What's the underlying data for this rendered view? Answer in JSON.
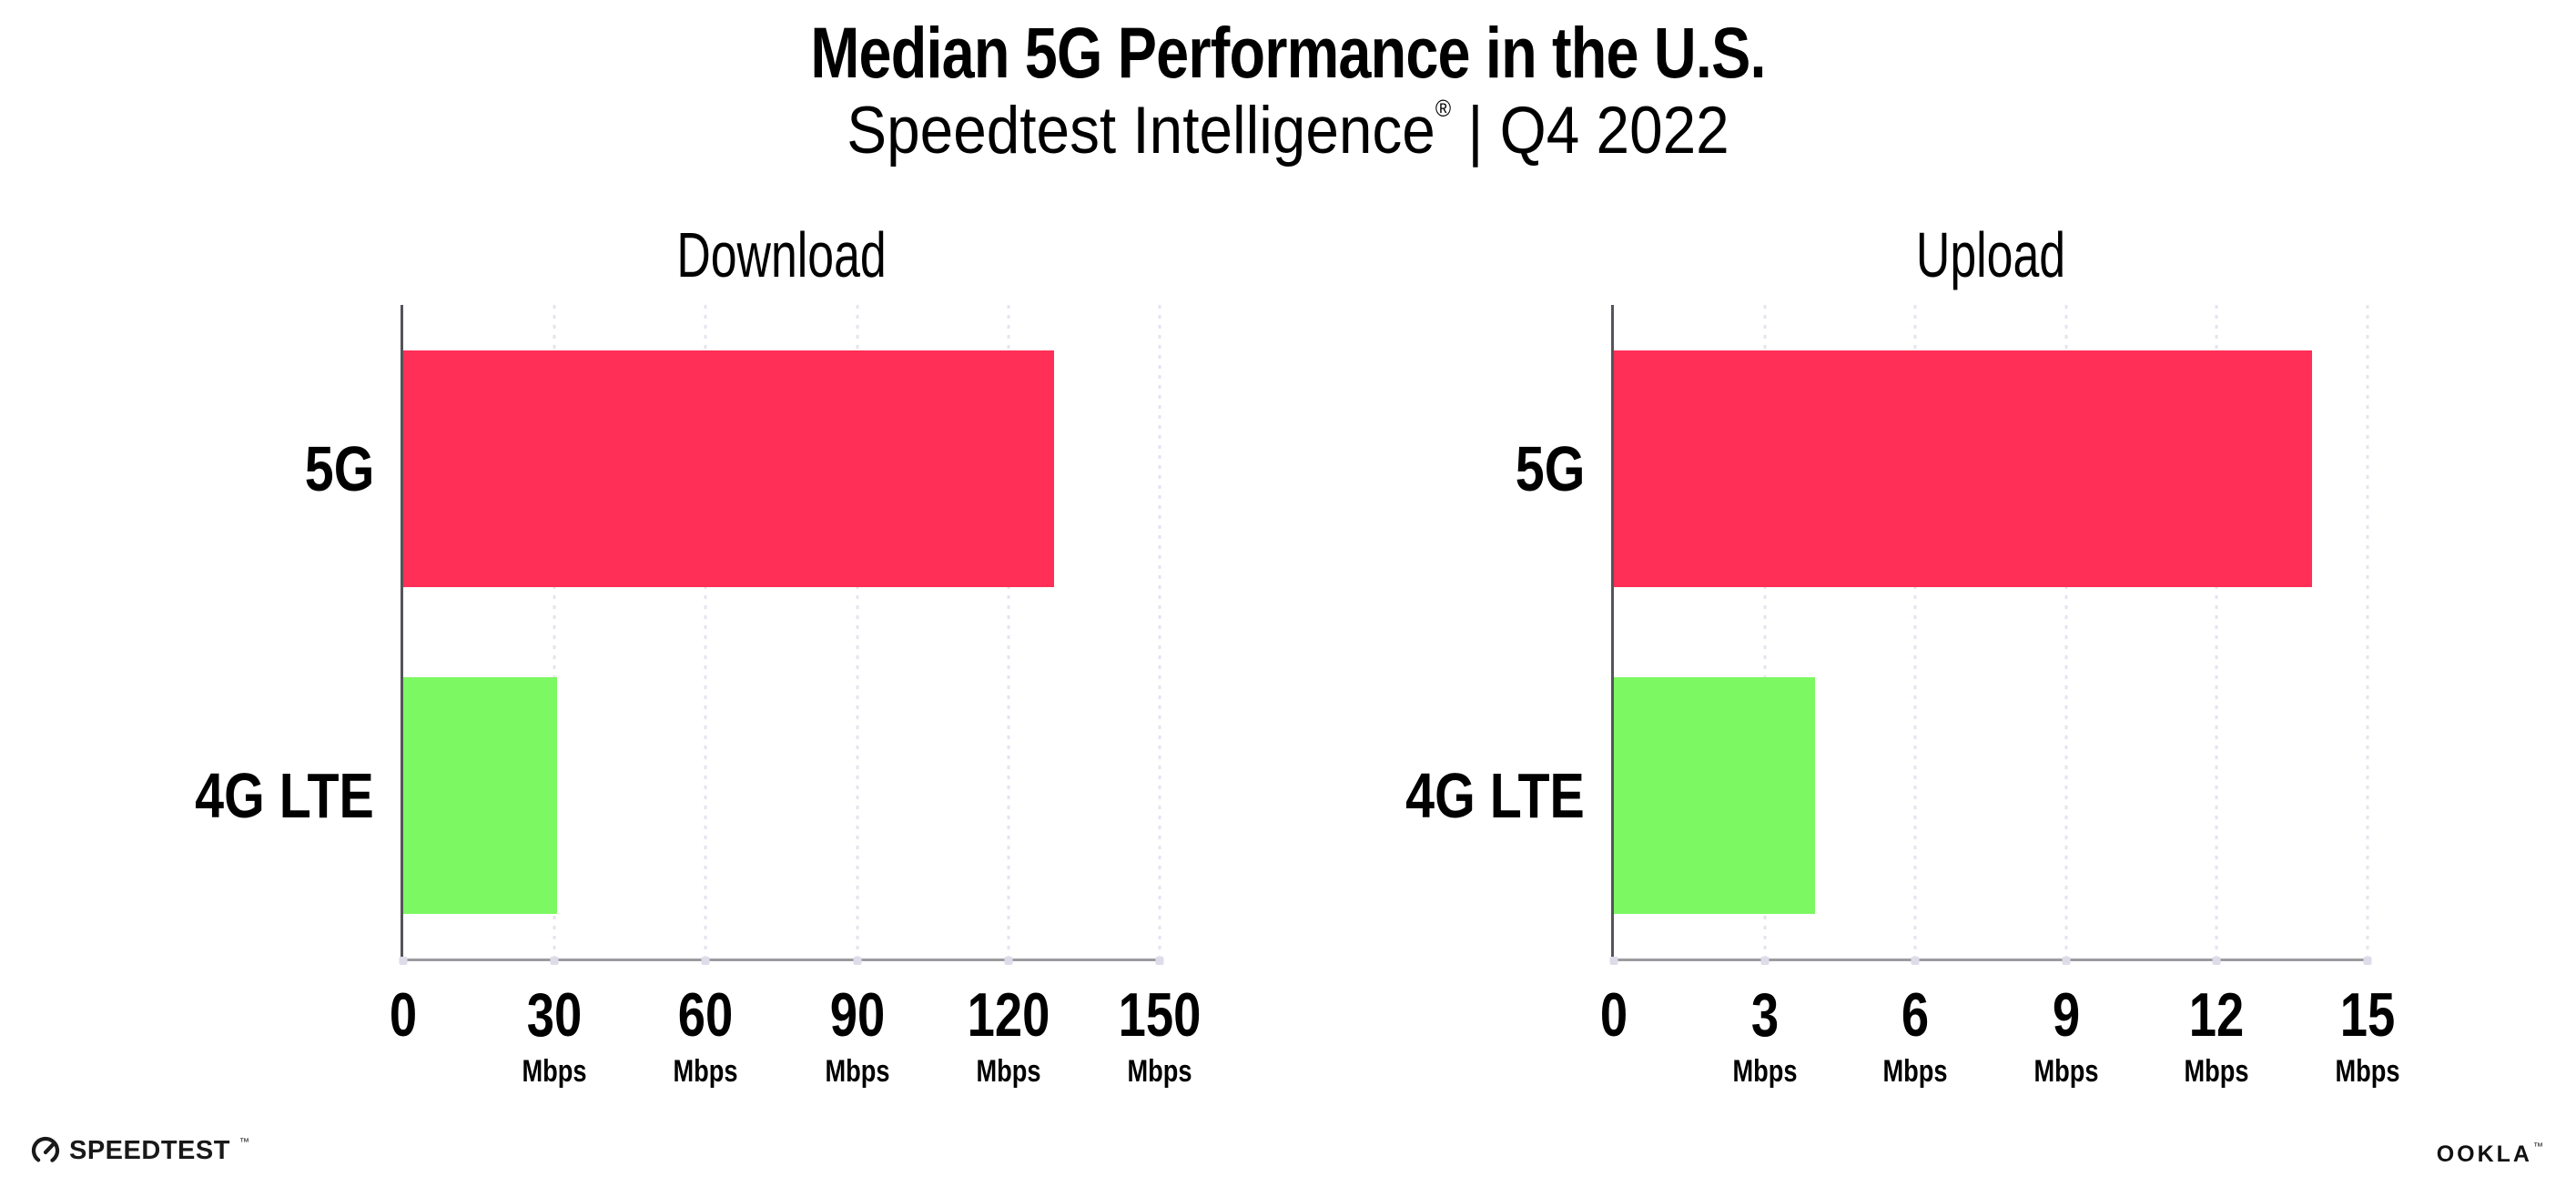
{
  "header": {
    "title": "Median 5G Performance in the U.S.",
    "subtitle_product": "Speedtest Intelligence",
    "subtitle_mark": "®",
    "subtitle_rest": " | Q4 2022"
  },
  "chart_data": [
    {
      "type": "bar",
      "orientation": "horizontal",
      "title": "Download",
      "categories": [
        "5G",
        "4G LTE"
      ],
      "values": [
        129,
        30.5
      ],
      "unit": "Mbps",
      "xlim": [
        0,
        150
      ],
      "xticks": [
        0,
        30,
        60,
        90,
        120,
        150
      ],
      "xtick_unit_label": "Mbps",
      "bar_colors": [
        "#FF2F57",
        "#7CF862"
      ],
      "grid": "dotted-vertical",
      "legend": "none"
    },
    {
      "type": "bar",
      "orientation": "horizontal",
      "title": "Upload",
      "categories": [
        "5G",
        "4G LTE"
      ],
      "values": [
        13.9,
        4
      ],
      "unit": "Mbps",
      "xlim": [
        0,
        15
      ],
      "xticks": [
        0,
        3,
        6,
        9,
        12,
        15
      ],
      "xtick_unit_label": "Mbps",
      "bar_colors": [
        "#FF2F57",
        "#7CF862"
      ],
      "grid": "dotted-vertical",
      "legend": "none"
    }
  ],
  "footer": {
    "speedtest_label": "SPEEDTEST",
    "speedtest_mark": "™",
    "ookla_label": "OOKLA",
    "ookla_mark": "™"
  },
  "style": {
    "bar_5g_color": "#FF2F57",
    "bar_4g_color": "#7CF862",
    "gridline_color": "#E4E4F0",
    "tick_dot_color": "#DCDDE9",
    "y_axis_color": "#54545A",
    "x_axis_color": "#9B9BA0",
    "text_color": "#000000",
    "background_color": "#FFFFFF"
  }
}
